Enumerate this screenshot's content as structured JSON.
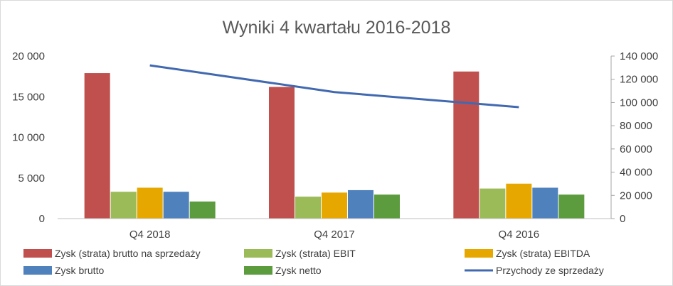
{
  "chart_data": {
    "type": "bar",
    "title": "Wyniki 4 kwartału 2016-2018",
    "categories": [
      "Q4 2018",
      "Q4 2017",
      "Q4 2016"
    ],
    "ylim": [
      0,
      20000
    ],
    "y_ticks": [
      "0",
      "5 000",
      "10 000",
      "15 000",
      "20 000"
    ],
    "y2lim": [
      0,
      140000
    ],
    "y2_ticks": [
      "0",
      "20 000",
      "40 000",
      "60 000",
      "80 000",
      "100 000",
      "120 000",
      "140 000"
    ],
    "grid": false,
    "legend_position": "bottom",
    "series": [
      {
        "name": "Zysk (strata) brutto na sprzedaży",
        "type": "bar",
        "axis": "left",
        "color": "#c0504d",
        "values": [
          17900,
          16200,
          18100
        ]
      },
      {
        "name": "Zysk (strata) EBIT",
        "type": "bar",
        "axis": "left",
        "color": "#9bbb59",
        "values": [
          3300,
          2700,
          3700
        ]
      },
      {
        "name": "Zysk (strata) EBITDA",
        "type": "bar",
        "axis": "left",
        "color": "#e6a800",
        "values": [
          3800,
          3200,
          4300
        ]
      },
      {
        "name": "Zysk brutto",
        "type": "bar",
        "axis": "left",
        "color": "#4f81bd",
        "values": [
          3300,
          3500,
          3800
        ]
      },
      {
        "name": "Zysk netto",
        "type": "bar",
        "axis": "left",
        "color": "#5d9b3f",
        "values": [
          2100,
          2950,
          2950
        ]
      },
      {
        "name": "Przychody ze sprzedaży",
        "type": "line",
        "axis": "right",
        "color": "#4169b0",
        "values": [
          132000,
          109000,
          96000
        ]
      }
    ]
  }
}
